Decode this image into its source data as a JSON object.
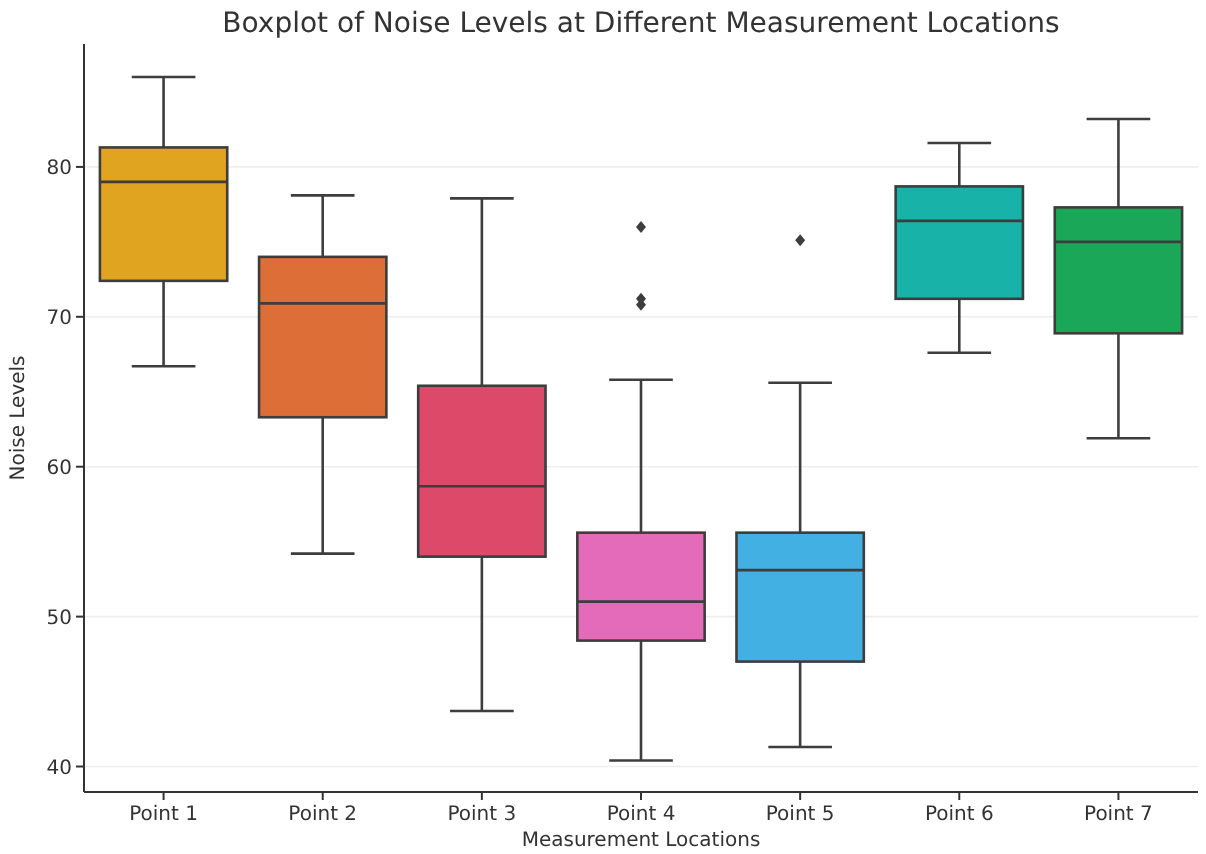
{
  "chart_data": {
    "type": "box",
    "title": "Boxplot of Noise Levels at Different Measurement Locations",
    "xlabel": "Measurement Locations",
    "ylabel": "Noise Levels",
    "categories": [
      "Point 1",
      "Point 2",
      "Point 3",
      "Point 4",
      "Point 5",
      "Point 6",
      "Point 7"
    ],
    "colors": [
      "#e0a420",
      "#dd6e37",
      "#dd4968",
      "#e46bb9",
      "#42b0e3",
      "#19b2a8",
      "#1aa858"
    ],
    "boxes": [
      {
        "low": 66.7,
        "q1": 72.4,
        "median": 79.0,
        "q3": 81.3,
        "high": 86.0
      },
      {
        "low": 54.2,
        "q1": 63.3,
        "median": 70.9,
        "q3": 74.0,
        "high": 78.1
      },
      {
        "low": 43.7,
        "q1": 54.0,
        "median": 58.7,
        "q3": 65.4,
        "high": 77.9
      },
      {
        "low": 40.4,
        "q1": 48.4,
        "median": 51.0,
        "q3": 55.6,
        "high": 65.8,
        "outliers": [
          76.0,
          71.2,
          70.8
        ]
      },
      {
        "low": 41.3,
        "q1": 47.0,
        "median": 53.1,
        "q3": 55.6,
        "high": 65.6,
        "outliers": [
          75.1
        ]
      },
      {
        "low": 67.6,
        "q1": 71.2,
        "median": 76.4,
        "q3": 78.7,
        "high": 81.6
      },
      {
        "low": 61.9,
        "q1": 68.9,
        "median": 75.0,
        "q3": 77.3,
        "high": 83.2
      }
    ],
    "ylim": [
      38.3,
      88.2
    ],
    "yticks": [
      40,
      50,
      60,
      70,
      80
    ],
    "grid": "y"
  }
}
